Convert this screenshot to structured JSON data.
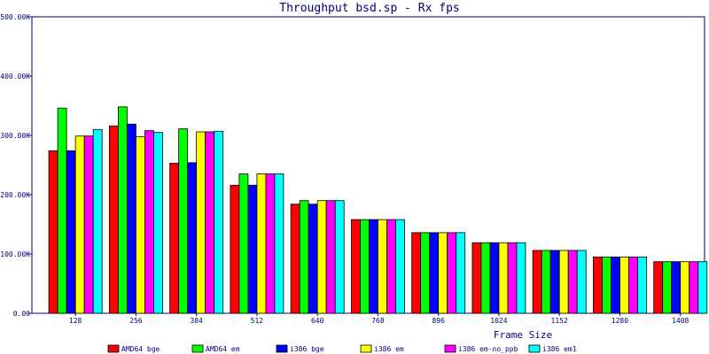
{
  "chart_data": {
    "type": "bar",
    "title": "Throughput bsd.sp - Rx fps",
    "xlabel": "Frame Size",
    "ylabel": "",
    "ylim": [
      0,
      500000
    ],
    "yticks": [
      {
        "value": 0,
        "label": "0.00"
      },
      {
        "value": 100000,
        "label": "100.00K"
      },
      {
        "value": 200000,
        "label": "200.00K"
      },
      {
        "value": 300000,
        "label": "300.00K"
      },
      {
        "value": 400000,
        "label": "400.00K"
      },
      {
        "value": 500000,
        "label": "500.00K"
      }
    ],
    "categories": [
      "128",
      "256",
      "384",
      "512",
      "640",
      "768",
      "896",
      "1024",
      "1152",
      "1280",
      "1408"
    ],
    "series": [
      {
        "name": "AMD64 bge",
        "color": "#ff0000",
        "values": [
          274000,
          316000,
          253000,
          216000,
          184000,
          158000,
          136000,
          119000,
          106000,
          95000,
          87000
        ]
      },
      {
        "name": "AMD64 em",
        "color": "#00ff00",
        "values": [
          346000,
          348000,
          311000,
          235000,
          190000,
          158000,
          136000,
          119000,
          106000,
          95000,
          87000
        ]
      },
      {
        "name": "i386 bge",
        "color": "#0000ff",
        "values": [
          274000,
          319000,
          254000,
          216000,
          184000,
          158000,
          136000,
          119000,
          106000,
          95000,
          87000
        ]
      },
      {
        "name": "i386 em",
        "color": "#ffff00",
        "values": [
          299000,
          298000,
          306000,
          235000,
          190000,
          158000,
          136000,
          119000,
          106000,
          95000,
          87000
        ]
      },
      {
        "name": "i386 em-no_ppb",
        "color": "#ff00ff",
        "values": [
          299000,
          308000,
          306000,
          235000,
          190000,
          158000,
          136000,
          119000,
          106000,
          95000,
          87000
        ]
      },
      {
        "name": "i386 em1",
        "color": "#00ffff",
        "values": [
          310000,
          305000,
          307000,
          235000,
          190000,
          158000,
          136000,
          119000,
          106000,
          95000,
          87000
        ]
      }
    ],
    "grid": false,
    "legend_position": "bottom"
  }
}
